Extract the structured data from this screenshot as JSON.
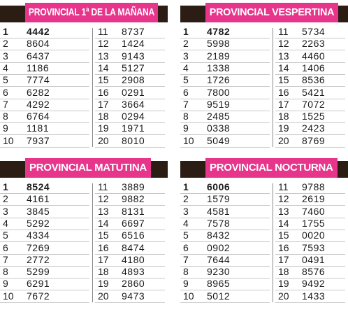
{
  "panels": [
    {
      "title": "PROVINCIAL 1ª DE LA MAÑANA",
      "rows": [
        [
          "1",
          "4442"
        ],
        [
          "2",
          "8604"
        ],
        [
          "3",
          "6437"
        ],
        [
          "4",
          "1186"
        ],
        [
          "5",
          "7774"
        ],
        [
          "6",
          "6282"
        ],
        [
          "7",
          "4292"
        ],
        [
          "8",
          "6764"
        ],
        [
          "9",
          "1181"
        ],
        [
          "10",
          "7937"
        ],
        [
          "11",
          "8737"
        ],
        [
          "12",
          "1424"
        ],
        [
          "13",
          "9143"
        ],
        [
          "14",
          "5127"
        ],
        [
          "15",
          "2908"
        ],
        [
          "16",
          "0291"
        ],
        [
          "17",
          "3664"
        ],
        [
          "18",
          "0294"
        ],
        [
          "19",
          "1971"
        ],
        [
          "20",
          "8010"
        ]
      ]
    },
    {
      "title": "PROVINCIAL VESPERTINA",
      "rows": [
        [
          "1",
          "4782"
        ],
        [
          "2",
          "5998"
        ],
        [
          "3",
          "2189"
        ],
        [
          "4",
          "1338"
        ],
        [
          "5",
          "1726"
        ],
        [
          "6",
          "7800"
        ],
        [
          "7",
          "9519"
        ],
        [
          "8",
          "2485"
        ],
        [
          "9",
          "0338"
        ],
        [
          "10",
          "5049"
        ],
        [
          "11",
          "5734"
        ],
        [
          "12",
          "2263"
        ],
        [
          "13",
          "4460"
        ],
        [
          "14",
          "1406"
        ],
        [
          "15",
          "8536"
        ],
        [
          "16",
          "5421"
        ],
        [
          "17",
          "7072"
        ],
        [
          "18",
          "1525"
        ],
        [
          "19",
          "2423"
        ],
        [
          "20",
          "8769"
        ]
      ]
    },
    {
      "title": "PROVINCIAL MATUTINA",
      "rows": [
        [
          "1",
          "8524"
        ],
        [
          "2",
          "4161"
        ],
        [
          "3",
          "3845"
        ],
        [
          "4",
          "5292"
        ],
        [
          "5",
          "4334"
        ],
        [
          "6",
          "7269"
        ],
        [
          "7",
          "2772"
        ],
        [
          "8",
          "5299"
        ],
        [
          "9",
          "6291"
        ],
        [
          "10",
          "7672"
        ],
        [
          "11",
          "3889"
        ],
        [
          "12",
          "9882"
        ],
        [
          "13",
          "8131"
        ],
        [
          "14",
          "6697"
        ],
        [
          "15",
          "6516"
        ],
        [
          "16",
          "8474"
        ],
        [
          "17",
          "4180"
        ],
        [
          "18",
          "4893"
        ],
        [
          "19",
          "2860"
        ],
        [
          "20",
          "9473"
        ]
      ]
    },
    {
      "title": "PROVINCIAL NOCTURNA",
      "rows": [
        [
          "1",
          "6006"
        ],
        [
          "2",
          "1579"
        ],
        [
          "3",
          "4581"
        ],
        [
          "4",
          "7578"
        ],
        [
          "5",
          "8432"
        ],
        [
          "6",
          "0902"
        ],
        [
          "7",
          "7644"
        ],
        [
          "8",
          "9230"
        ],
        [
          "9",
          "8965"
        ],
        [
          "10",
          "5012"
        ],
        [
          "11",
          "9788"
        ],
        [
          "12",
          "2619"
        ],
        [
          "13",
          "7460"
        ],
        [
          "14",
          "1755"
        ],
        [
          "15",
          "0020"
        ],
        [
          "16",
          "7593"
        ],
        [
          "17",
          "0491"
        ],
        [
          "18",
          "8576"
        ],
        [
          "19",
          "9492"
        ],
        [
          "20",
          "1433"
        ]
      ]
    }
  ]
}
